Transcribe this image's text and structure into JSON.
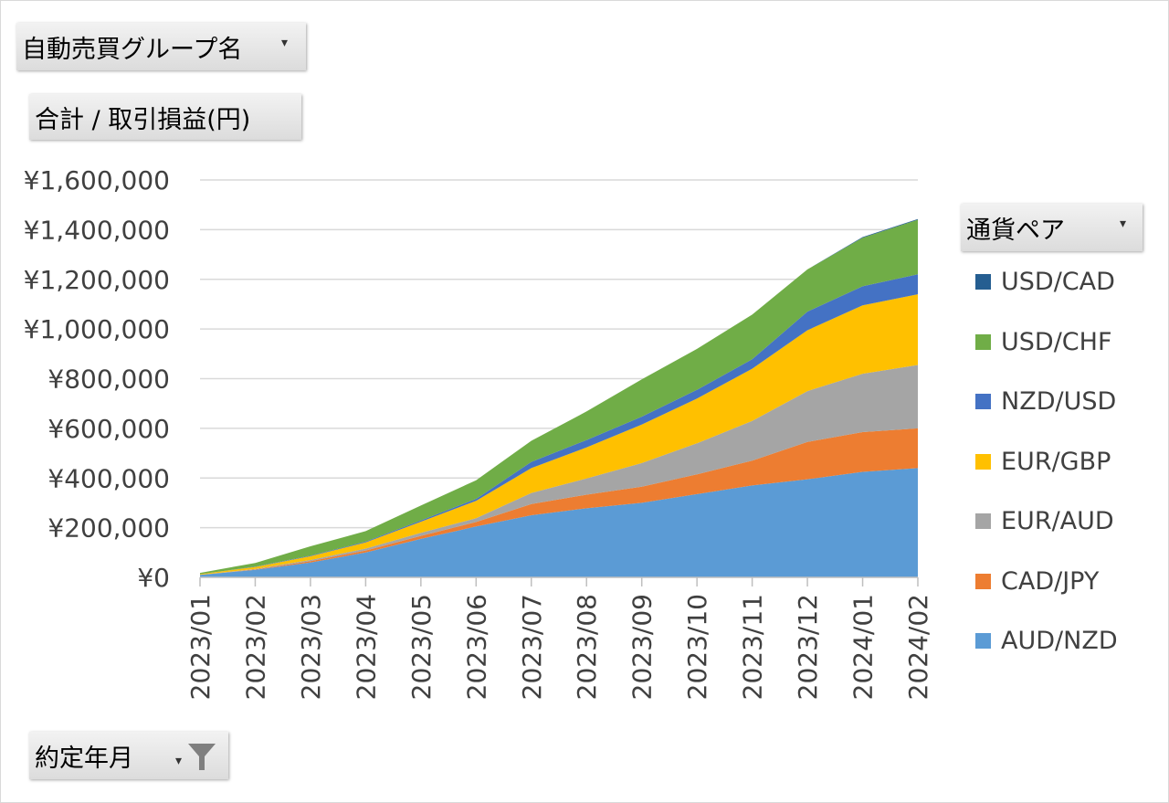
{
  "header": {
    "group_field": "自動売買グループ名",
    "value_field": "合計 / 取引損益(円)",
    "legend_field": "通貨ペア",
    "axis_field": "約定年月"
  },
  "icons": {
    "dropdown": "chevron-down-icon",
    "filter": "filter-icon"
  },
  "chart_data": {
    "type": "area",
    "stacked": true,
    "categories": [
      "2023/01",
      "2023/02",
      "2023/03",
      "2023/04",
      "2023/05",
      "2023/06",
      "2023/07",
      "2023/08",
      "2023/09",
      "2023/10",
      "2023/11",
      "2023/12",
      "2024/01",
      "2024/02"
    ],
    "ylim": [
      0,
      1600000
    ],
    "yticks": [
      0,
      200000,
      400000,
      600000,
      800000,
      1000000,
      1200000,
      1400000,
      1600000
    ],
    "ytick_labels": [
      "¥0",
      "¥200,000",
      "¥400,000",
      "¥600,000",
      "¥800,000",
      "¥1,000,000",
      "¥1,200,000",
      "¥1,400,000",
      "¥1,600,000"
    ],
    "grid": true,
    "legend_position": "right",
    "series": [
      {
        "name": "AUD/NZD",
        "color": "#5b9bd5",
        "values": [
          10000,
          30000,
          60000,
          100000,
          155000,
          205000,
          250000,
          278000,
          300000,
          335000,
          370000,
          395000,
          425000,
          440000
        ]
      },
      {
        "name": "CAD/JPY",
        "color": "#ed7d31",
        "values": [
          0,
          2000,
          5000,
          8000,
          12000,
          18000,
          45000,
          55000,
          65000,
          80000,
          100000,
          150000,
          160000,
          160000
        ]
      },
      {
        "name": "EUR/AUD",
        "color": "#a5a5a5",
        "values": [
          0,
          2000,
          5000,
          8000,
          12000,
          15000,
          45000,
          65000,
          95000,
          125000,
          160000,
          205000,
          235000,
          255000
        ]
      },
      {
        "name": "EUR/GBP",
        "color": "#ffc000",
        "values": [
          3000,
          8000,
          15000,
          25000,
          45000,
          70000,
          100000,
          125000,
          155000,
          180000,
          210000,
          245000,
          275000,
          285000
        ]
      },
      {
        "name": "NZD/USD",
        "color": "#4472c4",
        "values": [
          0,
          1000,
          2000,
          3000,
          5000,
          8000,
          25000,
          30000,
          32000,
          35000,
          38000,
          75000,
          77000,
          80000
        ]
      },
      {
        "name": "USD/CHF",
        "color": "#70ad47",
        "values": [
          5000,
          15000,
          38000,
          42000,
          60000,
          75000,
          85000,
          115000,
          150000,
          165000,
          180000,
          170000,
          195000,
          220000
        ]
      },
      {
        "name": "USD/CAD",
        "color": "#255e91",
        "values": [
          0,
          0,
          0,
          0,
          0,
          0,
          0,
          0,
          0,
          0,
          0,
          0,
          3000,
          3000
        ]
      }
    ]
  }
}
